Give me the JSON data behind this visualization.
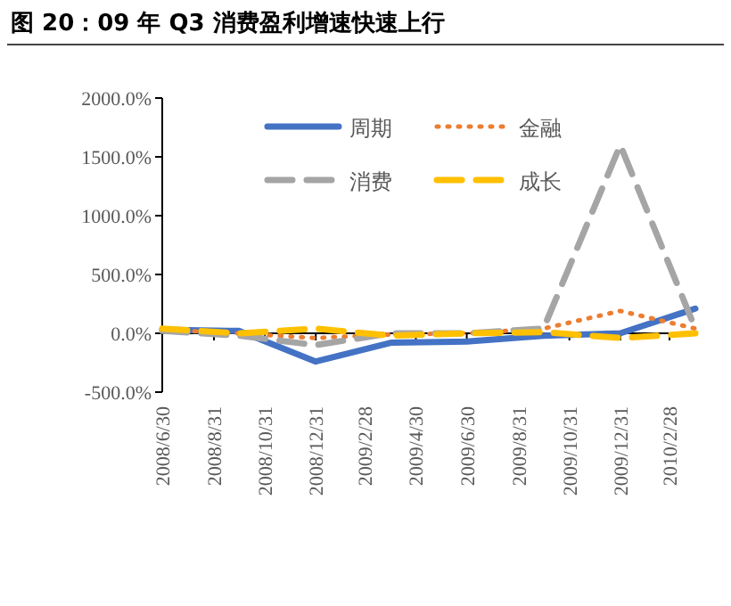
{
  "chart_data": {
    "type": "line",
    "title": "图 20：09 年 Q3 消费盈利增速快速上行",
    "x": [
      "2008-06-30",
      "2008-09-30",
      "2008-12-31",
      "2009-03-31",
      "2009-06-30",
      "2009-09-30",
      "2009-12-31",
      "2010-03-31"
    ],
    "series": [
      {
        "name": "周期",
        "color": "#4472c4",
        "line_style": "solid",
        "values": [
          30,
          20,
          -240,
          -80,
          -70,
          -20,
          0,
          210
        ]
      },
      {
        "name": "金融",
        "color": "#ed7d31",
        "line_style": "dotted",
        "values": [
          30,
          0,
          -40,
          -10,
          0,
          40,
          190,
          40
        ]
      },
      {
        "name": "消费",
        "color": "#a5a5a5",
        "line_style": "dashed",
        "values": [
          20,
          -20,
          -100,
          0,
          0,
          40,
          1600,
          40
        ]
      },
      {
        "name": "成长",
        "color": "#ffc000",
        "line_style": "dashed",
        "values": [
          40,
          0,
          40,
          -20,
          0,
          10,
          -40,
          0
        ]
      }
    ],
    "xlim": [
      "2008-06-30",
      "2010-03-31"
    ],
    "xticks": [
      {
        "value": "2008-06-30",
        "label": "2008/6/30"
      },
      {
        "value": "2008-08-31",
        "label": "2008/8/31"
      },
      {
        "value": "2008-10-31",
        "label": "2008/10/31"
      },
      {
        "value": "2008-12-31",
        "label": "2008/12/31"
      },
      {
        "value": "2009-02-28",
        "label": "2009/2/28"
      },
      {
        "value": "2009-04-30",
        "label": "2009/4/30"
      },
      {
        "value": "2009-06-30",
        "label": "2009/6/30"
      },
      {
        "value": "2009-08-31",
        "label": "2009/8/31"
      },
      {
        "value": "2009-10-31",
        "label": "2009/10/31"
      },
      {
        "value": "2009-12-31",
        "label": "2009/12/31"
      },
      {
        "value": "2010-02-28",
        "label": "2010/2/28"
      }
    ],
    "ylim": [
      -500,
      2000
    ],
    "yticks": [
      {
        "value": -500,
        "label": "-500.0%"
      },
      {
        "value": 0,
        "label": "0.0%"
      },
      {
        "value": 500,
        "label": "500.0%"
      },
      {
        "value": 1000,
        "label": "1000.0%"
      },
      {
        "value": 1500,
        "label": "1500.0%"
      },
      {
        "value": 2000,
        "label": "2000.0%"
      }
    ],
    "legend": "top"
  }
}
